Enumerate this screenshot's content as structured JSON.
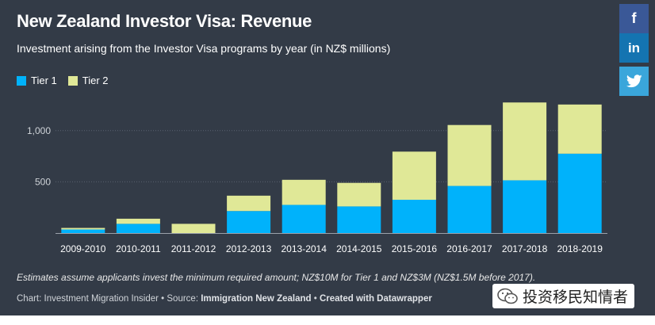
{
  "title": "New Zealand Investor Visa: Revenue",
  "subtitle": "Investment arising from the Investor Visa programs by year (in NZ$ millions)",
  "legend": {
    "tier1": "Tier 1",
    "tier2": "Tier 2"
  },
  "colors": {
    "tier1": "#00b2fb",
    "tier2": "#e0e897",
    "background": "#333b47",
    "grid": "#5a6270"
  },
  "note": "Estimates assume applicants invest the minimum required amount; NZ$10M for Tier 1 and NZ$3M (NZ$1.5M before 2017).",
  "footer": {
    "chart_prefix": "Chart: Investment Migration Insider • Source: ",
    "source": "Immigration New Zealand",
    "separator": " • ",
    "created": "Created with Datawrapper"
  },
  "share": {
    "facebook": "f",
    "linkedin": "in",
    "twitter_icon": "twitter-icon"
  },
  "watermark": {
    "text": "投资移民知情者",
    "icon": "wechat-icon"
  },
  "chart_data": {
    "type": "bar",
    "stacked": true,
    "categories": [
      "2009-2010",
      "2010-2011",
      "2011-2012",
      "2012-2013",
      "2013-2014",
      "2014-2015",
      "2015-2016",
      "2016-2017",
      "2017-2018",
      "2018-2019"
    ],
    "series": [
      {
        "name": "Tier 1",
        "values": [
          35,
          90,
          0,
          215,
          275,
          260,
          325,
          460,
          515,
          775
        ]
      },
      {
        "name": "Tier 2",
        "values": [
          15,
          50,
          90,
          150,
          245,
          230,
          470,
          595,
          760,
          480
        ]
      }
    ],
    "yticks": [
      500,
      1000
    ],
    "ytick_labels": [
      "500",
      "1,000"
    ],
    "ylim": [
      0,
      1300
    ],
    "grid": true,
    "legend_position": "top-left"
  }
}
